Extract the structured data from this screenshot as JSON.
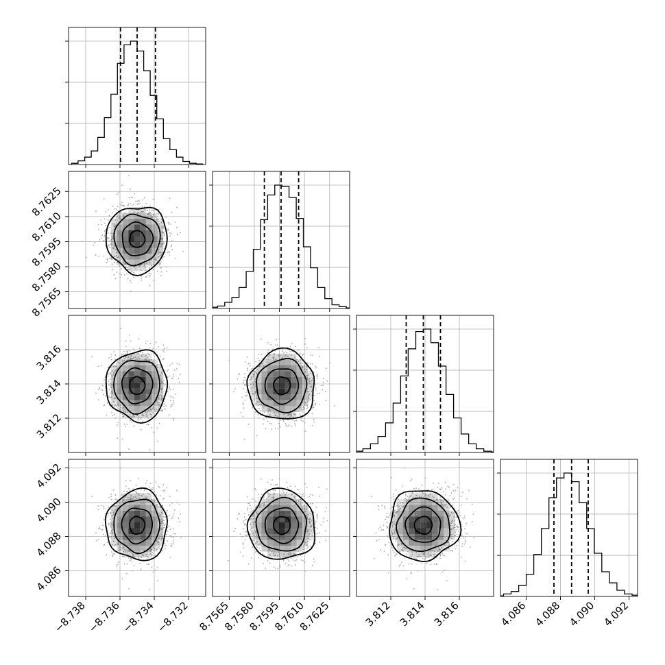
{
  "chart_data": {
    "type": "corner",
    "parameters": [
      {
        "label": "",
        "range": [
          -8.739,
          -8.731
        ],
        "mean": -8.735,
        "std": 0.00085,
        "quantiles": [
          -8.73597,
          -8.735,
          -8.73393
        ],
        "ticks": [
          -8.738,
          -8.736,
          -8.734,
          -8.732
        ],
        "tick_labels": [
          "−8.738",
          "−8.736",
          "−8.734",
          "−8.732"
        ],
        "hist_counts": [
          0.01,
          0.03,
          0.06,
          0.11,
          0.22,
          0.38,
          0.57,
          0.82,
          0.97,
          1.0,
          0.92,
          0.76,
          0.56,
          0.37,
          0.21,
          0.12,
          0.06,
          0.025,
          0.01,
          0.005
        ]
      },
      {
        "label": "",
        "range": [
          8.7555,
          8.7637
        ],
        "mean": 8.75965,
        "std": 0.00095,
        "quantiles": [
          8.7586,
          8.7596,
          8.76065
        ],
        "ticks": [
          8.7565,
          8.758,
          8.7595,
          8.761,
          8.7625
        ],
        "tick_labels": [
          "8.7565",
          "8.7580",
          "8.7595",
          "8.7610",
          "8.7625"
        ],
        "hist_counts": [
          0.01,
          0.02,
          0.05,
          0.09,
          0.17,
          0.3,
          0.48,
          0.72,
          0.92,
          1.0,
          0.99,
          0.9,
          0.73,
          0.5,
          0.33,
          0.17,
          0.08,
          0.03,
          0.015,
          0.005
        ]
      },
      {
        "label": "",
        "range": [
          3.81,
          3.818
        ],
        "mean": 3.8139,
        "std": 0.00098,
        "quantiles": [
          3.8129,
          3.8139,
          3.8149
        ],
        "ticks": [
          3.812,
          3.814,
          3.816
        ],
        "tick_labels": [
          "3.812",
          "3.814",
          "3.816"
        ],
        "hist_counts": [
          0.005,
          0.01,
          0.03,
          0.07,
          0.13,
          0.24,
          0.4,
          0.62,
          0.84,
          0.98,
          1.0,
          0.89,
          0.7,
          0.47,
          0.28,
          0.15,
          0.07,
          0.03,
          0.01,
          0.005
        ]
      },
      {
        "label": "",
        "range": [
          4.0845,
          4.0925
        ],
        "mean": 4.08865,
        "std": 0.00098,
        "quantiles": [
          4.08762,
          4.08865,
          4.08962
        ],
        "ticks": [
          4.086,
          4.088,
          4.09,
          4.092
        ],
        "tick_labels": [
          "4.086",
          "4.088",
          "4.090",
          "4.092"
        ],
        "hist_counts": [
          0.005,
          0.02,
          0.04,
          0.09,
          0.18,
          0.34,
          0.55,
          0.8,
          0.96,
          1.0,
          0.93,
          0.76,
          0.55,
          0.35,
          0.2,
          0.11,
          0.05,
          0.02,
          0.01,
          0.005
        ]
      }
    ],
    "grid": true,
    "samples_per_panel": 1400,
    "contour_levels_sigma": [
      0.5,
      1.0,
      1.5,
      2.0
    ],
    "colors": {
      "hist": "#000000",
      "points": "#a8a8a8",
      "density": "#000000",
      "grid": "#b0b0b0"
    }
  }
}
